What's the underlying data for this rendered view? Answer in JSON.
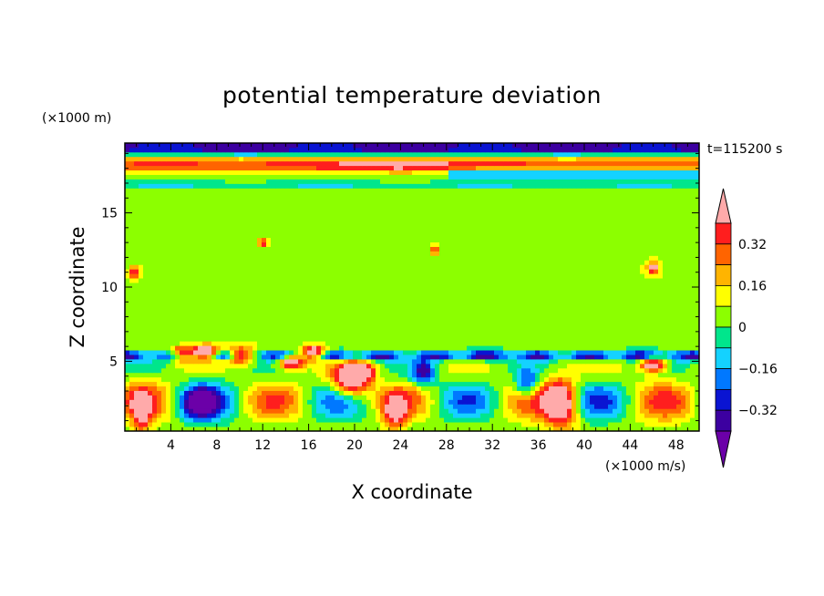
{
  "chart_data": {
    "type": "heatmap",
    "title": "potential temperature deviation",
    "xlabel": "X coordinate",
    "ylabel": "Z coordinate",
    "x_unit": "(×1000 m/s)",
    "y_unit": "(×1000 m)",
    "time_label": "t=115200 s",
    "xlim": [
      0,
      50
    ],
    "ylim": [
      0.3,
      19.7
    ],
    "x_ticks": [
      4,
      8,
      12,
      16,
      20,
      24,
      28,
      32,
      36,
      40,
      44,
      48
    ],
    "y_ticks": [
      5,
      10,
      15
    ],
    "colorbar": {
      "levels": [
        -0.4,
        -0.32,
        -0.24,
        -0.16,
        -0.08,
        0,
        0.08,
        0.16,
        0.24,
        0.32,
        0.4
      ],
      "tick_labels": [
        "0.32",
        "0.16",
        "0",
        "−0.16",
        "−0.32"
      ],
      "tick_values": [
        0.32,
        0.16,
        0,
        -0.16,
        -0.32
      ],
      "colors": [
        "#6b00a8",
        "#3c00a0",
        "#0a14d2",
        "#0078ff",
        "#14d2ff",
        "#00e68c",
        "#8cff00",
        "#ffff00",
        "#ffb400",
        "#ff6400",
        "#ff1e1e",
        "#ffaaaa"
      ]
    },
    "features": [
      {
        "region": "upper layer (z 17-19.7)",
        "pattern": "positive band near z 18, negative band near z 17.5-19"
      },
      {
        "region": "mid troposphere (z 6-17)",
        "pattern": "weak values near 0 to 0.08"
      },
      {
        "region": "z 5-6",
        "pattern": "strong negative band with positive cells"
      },
      {
        "region": "lower layer (z 0.3-5)",
        "pattern": "alternating positive/negative wave cells"
      }
    ]
  }
}
